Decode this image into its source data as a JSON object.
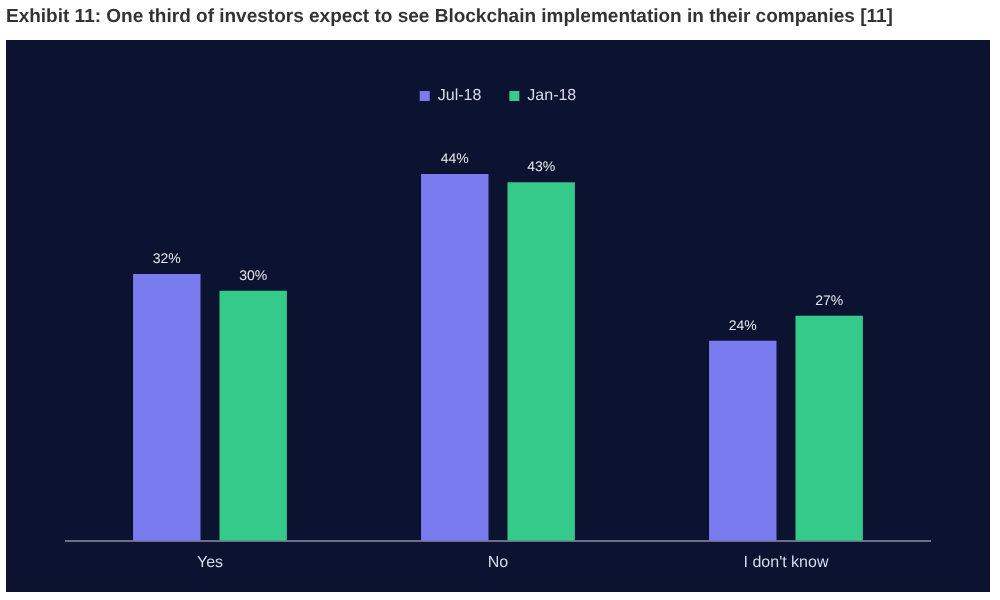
{
  "chart_data": {
    "type": "bar",
    "title": "Exhibit 11: One third of investors expect to see Blockchain implementation in their companies [11]",
    "categories": [
      "Yes",
      "No",
      "I don't know"
    ],
    "series": [
      {
        "name": "Jul-18",
        "color": "#7b7bf0",
        "values": [
          32,
          44,
          24
        ],
        "value_labels": [
          "32%",
          "44%",
          "24%"
        ]
      },
      {
        "name": "Jan-18",
        "color": "#35c98a",
        "values": [
          30,
          43,
          27
        ],
        "value_labels": [
          "30%",
          "43%",
          "27%"
        ]
      }
    ],
    "legend": "top"
  }
}
